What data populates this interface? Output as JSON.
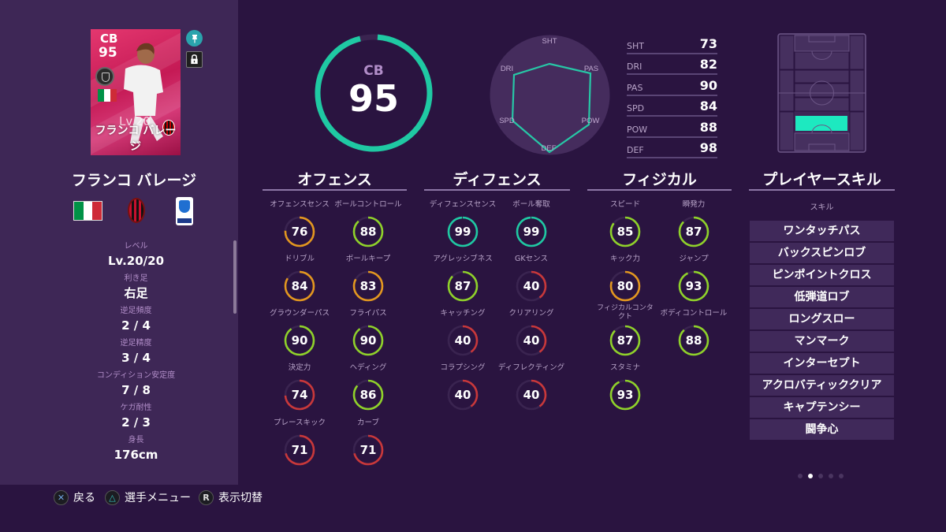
{
  "card": {
    "position": "CB",
    "overall": "95",
    "level_badge": "Lv.20",
    "name": "フランコ バレージ",
    "nationality_flag": [
      "#009246",
      "#ffffff",
      "#ce2b37"
    ],
    "pin_icon": "pin-icon",
    "lock_icon": "lock-icon"
  },
  "player": {
    "name": "フランコ バレージ",
    "nationality": "Italy",
    "club": "AC Milan",
    "league": "Serie A"
  },
  "info": [
    {
      "label": "レベル",
      "value": "Lv.20/20"
    },
    {
      "label": "利き足",
      "value": "右足"
    },
    {
      "label": "逆足頻度",
      "value": "2 / 4"
    },
    {
      "label": "逆足精度",
      "value": "3 / 4"
    },
    {
      "label": "コンディション安定度",
      "value": "7 / 8"
    },
    {
      "label": "ケガ耐性",
      "value": "2 / 3"
    },
    {
      "label": "身長",
      "value": "176cm"
    }
  ],
  "footer": {
    "back": {
      "glyph": "✕",
      "label": "戻る"
    },
    "menu": {
      "glyph": "△",
      "label": "選手メニュー"
    },
    "toggle": {
      "glyph": "R",
      "label": "表示切替"
    }
  },
  "overall": {
    "position": "CB",
    "value": "95",
    "ring_color": "#1fc9a3"
  },
  "radar": {
    "labels": [
      "SHT",
      "PAS",
      "POW",
      "DEF",
      "SPD",
      "DRI"
    ],
    "values": [
      73,
      90,
      88,
      98,
      84,
      82
    ],
    "line_color": "#27c7a6"
  },
  "stats": [
    {
      "key": "SHT",
      "value": "73"
    },
    {
      "key": "DRI",
      "value": "82"
    },
    {
      "key": "PAS",
      "value": "90"
    },
    {
      "key": "SPD",
      "value": "84"
    },
    {
      "key": "POW",
      "value": "88"
    },
    {
      "key": "DEF",
      "value": "98"
    }
  ],
  "pitch": {
    "highlight_zone": "CB",
    "highlight_color": "#1de9c0"
  },
  "sections": {
    "offense": {
      "title": "オフェンス",
      "attrs": [
        {
          "label": "オフェンスセンス",
          "value": "76"
        },
        {
          "label": "ボールコントロール",
          "value": "88"
        },
        {
          "label": "ドリブル",
          "value": "84"
        },
        {
          "label": "ボールキープ",
          "value": "83"
        },
        {
          "label": "グラウンダーパス",
          "value": "90"
        },
        {
          "label": "フライパス",
          "value": "90"
        },
        {
          "label": "決定力",
          "value": "74"
        },
        {
          "label": "ヘディング",
          "value": "86"
        },
        {
          "label": "プレースキック",
          "value": "71"
        },
        {
          "label": "カーブ",
          "value": "71"
        }
      ]
    },
    "defense": {
      "title": "ディフェンス",
      "attrs": [
        {
          "label": "ディフェンスセンス",
          "value": "99"
        },
        {
          "label": "ボール奪取",
          "value": "99"
        },
        {
          "label": "アグレッシブネス",
          "value": "87"
        },
        {
          "label": "GKセンス",
          "value": "40"
        },
        {
          "label": "キャッチング",
          "value": "40"
        },
        {
          "label": "クリアリング",
          "value": "40"
        },
        {
          "label": "コラプシング",
          "value": "40"
        },
        {
          "label": "ディフレクティング",
          "value": "40"
        }
      ]
    },
    "physical": {
      "title": "フィジカル",
      "attrs": [
        {
          "label": "スピード",
          "value": "85"
        },
        {
          "label": "瞬発力",
          "value": "87"
        },
        {
          "label": "キック力",
          "value": "80"
        },
        {
          "label": "ジャンプ",
          "value": "93"
        },
        {
          "label": "フィジカルコンタ\nクト",
          "value": "87"
        },
        {
          "label": "ボディコントロール",
          "value": "88"
        },
        {
          "label": "スタミナ",
          "value": "93"
        }
      ]
    },
    "skills": {
      "title": "プレイヤースキル",
      "subtitle": "スキル",
      "items": [
        "ワンタッチパス",
        "バックスピンロブ",
        "ピンポイントクロス",
        "低弾道ロブ",
        "ロングスロー",
        "マンマーク",
        "インターセプト",
        "アクロバティッククリア",
        "キャプテンシー",
        "闘争心"
      ]
    }
  },
  "rating_colors": {
    "elite": "#1fc9a3",
    "high": "#8fd12a",
    "mid": "#e3971f",
    "low": "#c9383a",
    "track": "#3a2450"
  },
  "pager": {
    "count": 5,
    "active": 1
  }
}
